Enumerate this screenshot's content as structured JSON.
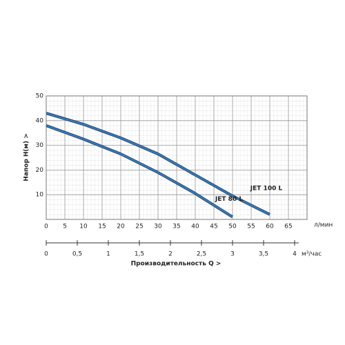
{
  "chart_data": {
    "type": "line",
    "x_unit": "л/мин",
    "x2_unit": "м³/час",
    "y_label": "Напор  H(м)  >",
    "x2_label": "Производительность Q  >",
    "xlim": [
      0,
      70
    ],
    "xticks": [
      0,
      5,
      10,
      15,
      20,
      25,
      30,
      35,
      40,
      45,
      50,
      55,
      60,
      65
    ],
    "ylim": [
      0,
      50
    ],
    "yticks": [
      10,
      20,
      30,
      40,
      50
    ],
    "x2lim": [
      0,
      4.2
    ],
    "x2ticks": [
      0,
      {
        "value": 0.5,
        "label": "0,5"
      },
      1,
      {
        "value": 1.5,
        "label": "1,5"
      },
      2,
      {
        "value": 2.5,
        "label": "2,5"
      },
      3,
      {
        "value": 3.5,
        "label": "3,5"
      },
      4
    ],
    "grid": true,
    "series": [
      {
        "name": "JET 100 L",
        "color": "#3a78b5",
        "x": [
          0,
          10,
          20,
          30,
          40,
          50,
          60
        ],
        "values": [
          43,
          38.5,
          33,
          26.5,
          18,
          9.5,
          2
        ]
      },
      {
        "name": "JET 80 L",
        "color": "#3a78b5",
        "x": [
          0,
          10,
          20,
          30,
          40,
          50
        ],
        "values": [
          38,
          32.5,
          26.5,
          19,
          10.5,
          1
        ]
      }
    ]
  }
}
